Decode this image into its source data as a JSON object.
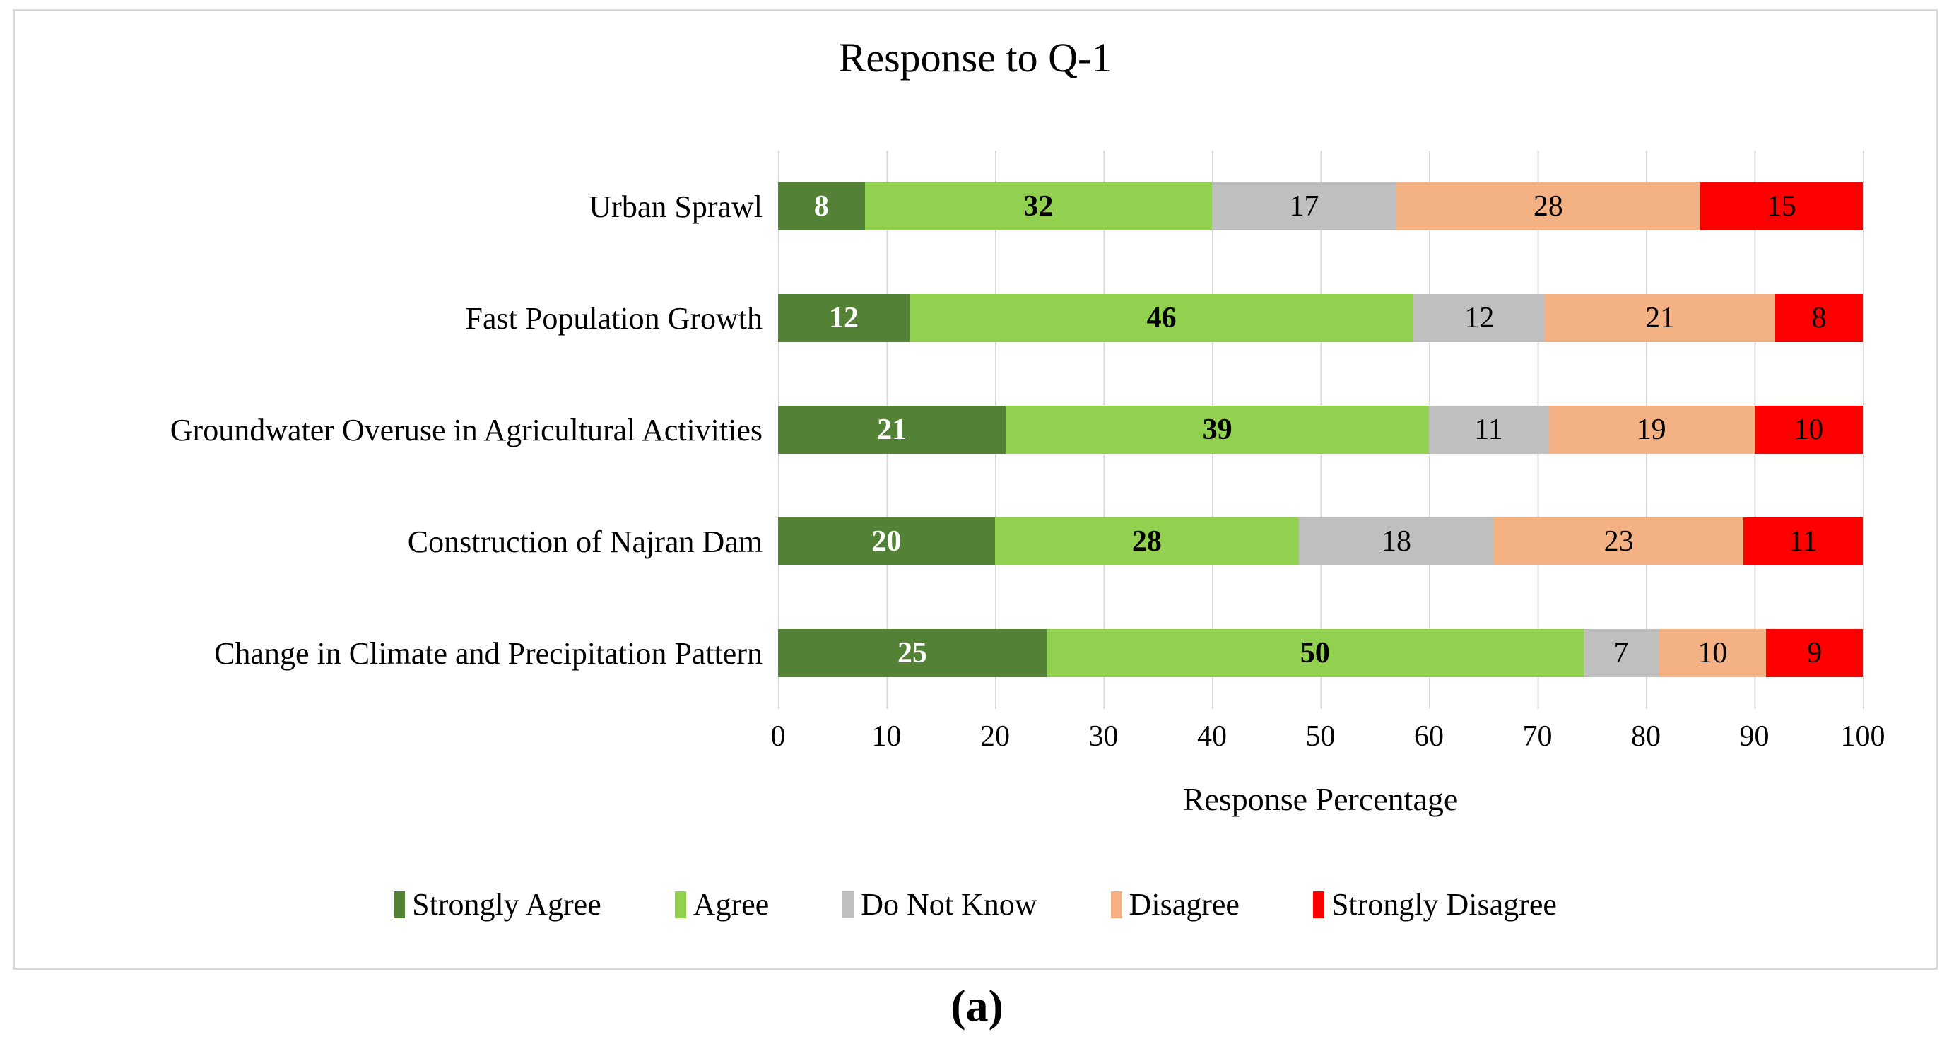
{
  "figure": {
    "title": "Response to Q-1",
    "xlabel": "Response Percentage",
    "caption": "(a)"
  },
  "chart_data": {
    "type": "bar",
    "orientation": "horizontal",
    "stacked": true,
    "title": "Response to Q-1",
    "xlabel": "Response Percentage",
    "xlim": [
      0,
      100
    ],
    "xticks": [
      0,
      10,
      20,
      30,
      40,
      50,
      60,
      70,
      80,
      90,
      100
    ],
    "grid": true,
    "gridline_color": "#d9d9d9",
    "legend_position": "bottom",
    "categories": [
      "Urban Sprawl",
      "Fast Population Growth",
      "Groundwater Overuse in Agricultural Activities",
      "Construction of Najran Dam",
      "Change in Climate and Precipitation Pattern"
    ],
    "series": [
      {
        "name": "Strongly Agree",
        "color": "#538135",
        "label_color": "#ffffff",
        "label_bold": true,
        "values": [
          8,
          12,
          21,
          20,
          25
        ]
      },
      {
        "name": "Agree",
        "color": "#92d050",
        "label_color": "#000000",
        "label_bold": true,
        "values": [
          32,
          46,
          39,
          28,
          50
        ]
      },
      {
        "name": "Do Not Know",
        "color": "#bfbfbf",
        "label_color": "#000000",
        "label_bold": false,
        "values": [
          17,
          12,
          11,
          18,
          7
        ]
      },
      {
        "name": "Disagree",
        "color": "#f4b183",
        "label_color": "#000000",
        "label_bold": false,
        "values": [
          28,
          21,
          19,
          23,
          10
        ]
      },
      {
        "name": "Strongly Disagree",
        "color": "#ff0000",
        "label_color": "#000000",
        "label_bold": false,
        "values": [
          15,
          8,
          10,
          11,
          9
        ]
      }
    ]
  }
}
